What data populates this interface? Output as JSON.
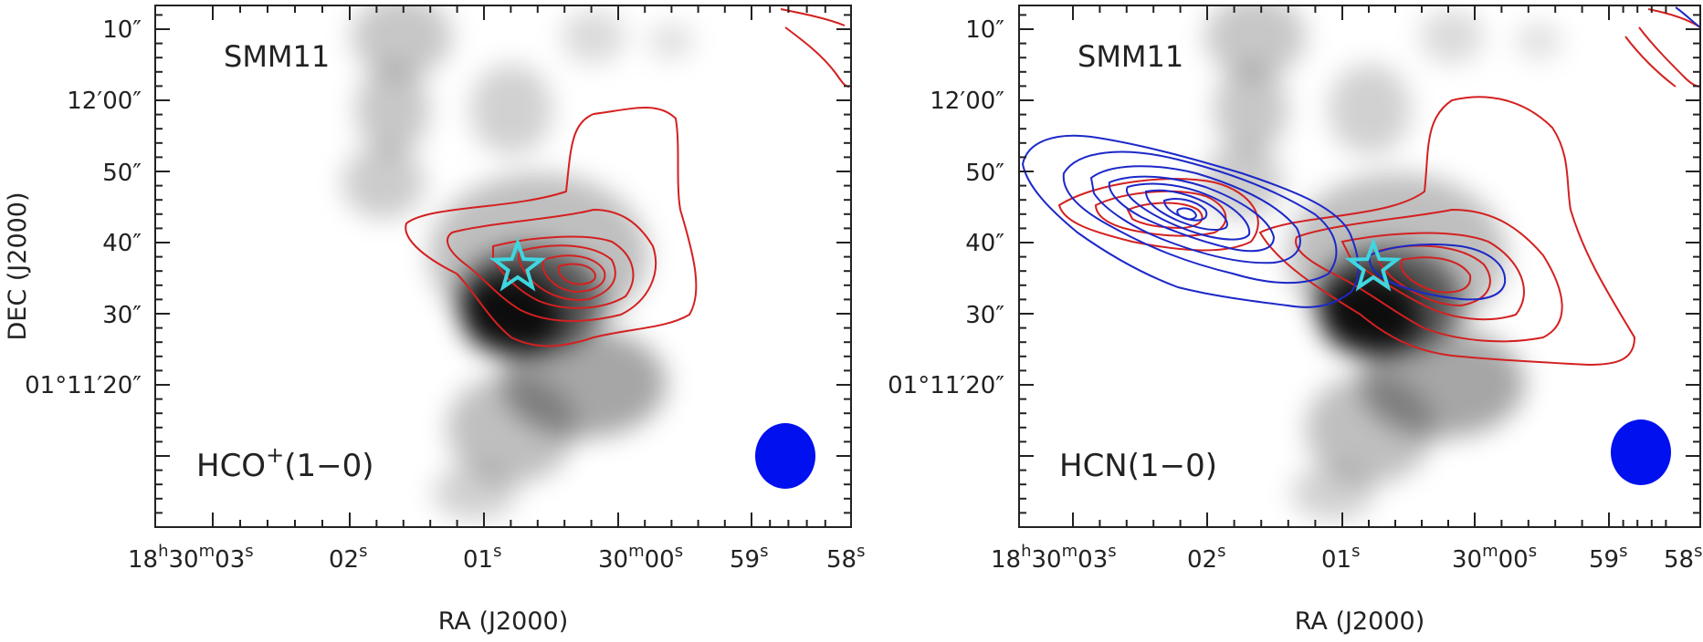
{
  "chart_data": [
    {
      "type": "contour",
      "panel": "left",
      "source_label": "SMM11",
      "line_label": {
        "base": "HCO",
        "sup": "+",
        "rest": "(1−0)"
      },
      "xlabel": "RA (J2000)",
      "ylabel": "DEC (J2000)",
      "x_ticks": [
        {
          "base": "18",
          "u1": "h",
          "mid": "30",
          "u2": "m",
          "end": "03",
          "u3": "s"
        },
        {
          "base": "02",
          "u1": "s"
        },
        {
          "base": "01",
          "u1": "s"
        },
        {
          "base": "30",
          "u1": "m",
          "mid": "00",
          "u2": "s"
        },
        {
          "base": "59",
          "u1": "s"
        },
        {
          "base": "58",
          "u1": "s"
        }
      ],
      "y_ticks": [
        "10″",
        "12′00″",
        "50″",
        "40″",
        "30″",
        "01°11′20″"
      ],
      "beam_color": "#0010ee",
      "star_color": "#3fd6e0",
      "red_contour_color": "#d42020",
      "contour_series": [
        "red"
      ]
    },
    {
      "type": "contour",
      "panel": "right",
      "source_label": "SMM11",
      "line_label": {
        "base": "HCN(1−0)"
      },
      "xlabel": "RA (J2000)",
      "ylabel": "",
      "x_ticks": [
        {
          "base": "18",
          "u1": "h",
          "mid": "30",
          "u2": "m",
          "end": "03",
          "u3": "s"
        },
        {
          "base": "02",
          "u1": "s"
        },
        {
          "base": "01",
          "u1": "s"
        },
        {
          "base": "30",
          "u1": "m",
          "mid": "00",
          "u2": "s"
        },
        {
          "base": "59",
          "u1": "s"
        },
        {
          "base": "58",
          "u1": "s"
        }
      ],
      "y_ticks": [
        "10″",
        "12′00″",
        "50″",
        "40″",
        "30″",
        "01°11′20″"
      ],
      "beam_color": "#0010ee",
      "star_color": "#3fd6e0",
      "red_contour_color": "#d42020",
      "blue_contour_color": "#1c28c8",
      "contour_series": [
        "red",
        "blue"
      ]
    }
  ]
}
